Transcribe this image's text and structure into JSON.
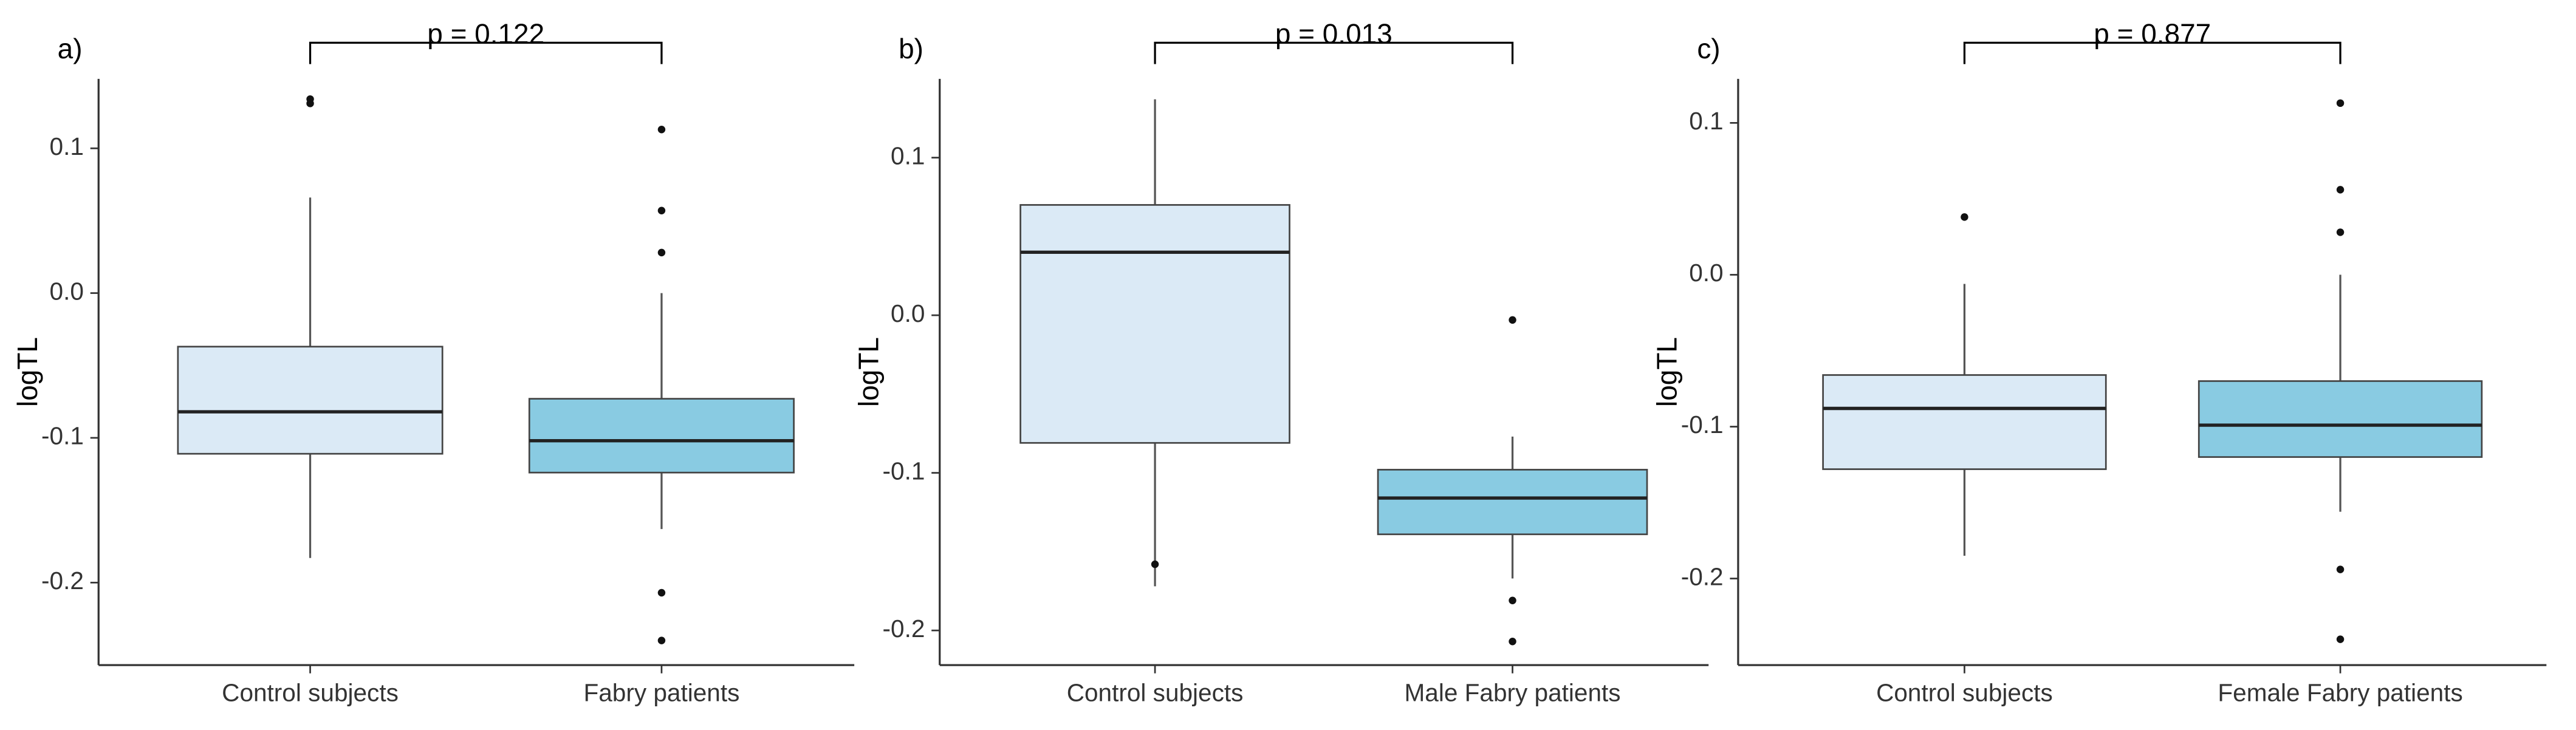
{
  "chart_data": [
    {
      "type": "box",
      "panel_label": "a)",
      "annotation": "p = 0.122",
      "y_label": "logTL",
      "categories": [
        "Control subjects",
        "Fabry patients"
      ],
      "colors": [
        "#dbeaf6",
        "#89cbe2"
      ],
      "boxes": [
        {
          "whisker_low": -0.183,
          "q1": -0.111,
          "median": -0.082,
          "q3": -0.037,
          "whisker_high": 0.066,
          "outliers": [
            0.134,
            0.131
          ]
        },
        {
          "whisker_low": -0.163,
          "q1": -0.124,
          "median": -0.102,
          "q3": -0.073,
          "whisker_high": 0.0,
          "outliers": [
            0.113,
            0.057,
            0.028,
            -0.207,
            -0.24
          ]
        }
      ],
      "ylim": [
        -0.257,
        0.148
      ],
      "yticks": [
        {
          "value": -0.2,
          "label": "-0.2"
        },
        {
          "value": -0.1,
          "label": "-0.1"
        },
        {
          "value": 0,
          "label": "0.0"
        },
        {
          "value": 0.1,
          "label": "0.1"
        }
      ]
    },
    {
      "type": "box",
      "panel_label": "b)",
      "annotation": "p = 0.013",
      "y_label": "logTL",
      "categories": [
        "Control subjects",
        "Male Fabry patients"
      ],
      "colors": [
        "#dbeaf6",
        "#89cbe2"
      ],
      "boxes": [
        {
          "whisker_low": -0.172,
          "q1": -0.081,
          "median": 0.04,
          "q3": 0.07,
          "whisker_high": 0.137,
          "outliers": [
            -0.158
          ]
        },
        {
          "whisker_low": -0.167,
          "q1": -0.139,
          "median": -0.116,
          "q3": -0.098,
          "whisker_high": -0.077,
          "outliers": [
            -0.003,
            -0.181,
            -0.207
          ]
        }
      ],
      "ylim": [
        -0.222,
        0.15
      ],
      "yticks": [
        {
          "value": -0.2,
          "label": "-0.2"
        },
        {
          "value": -0.1,
          "label": "-0.1"
        },
        {
          "value": 0,
          "label": "0.0"
        },
        {
          "value": 0.1,
          "label": "0.1"
        }
      ]
    },
    {
      "type": "box",
      "panel_label": "c)",
      "annotation": "p = 0.877",
      "y_label": "logTL",
      "categories": [
        "Control subjects",
        "Female Fabry patients"
      ],
      "colors": [
        "#dbeaf6",
        "#89cbe2"
      ],
      "boxes": [
        {
          "whisker_low": -0.185,
          "q1": -0.128,
          "median": -0.088,
          "q3": -0.066,
          "whisker_high": -0.006,
          "outliers": [
            0.038
          ]
        },
        {
          "whisker_low": -0.156,
          "q1": -0.12,
          "median": -0.099,
          "q3": -0.07,
          "whisker_high": 0.0,
          "outliers": [
            0.113,
            0.056,
            0.028,
            -0.194,
            -0.24
          ]
        }
      ],
      "ylim": [
        -0.257,
        0.129
      ],
      "yticks": [
        {
          "value": -0.2,
          "label": "-0.2"
        },
        {
          "value": -0.1,
          "label": "-0.1"
        },
        {
          "value": 0,
          "label": "0.0"
        },
        {
          "value": 0.1,
          "label": "0.1"
        }
      ]
    }
  ]
}
